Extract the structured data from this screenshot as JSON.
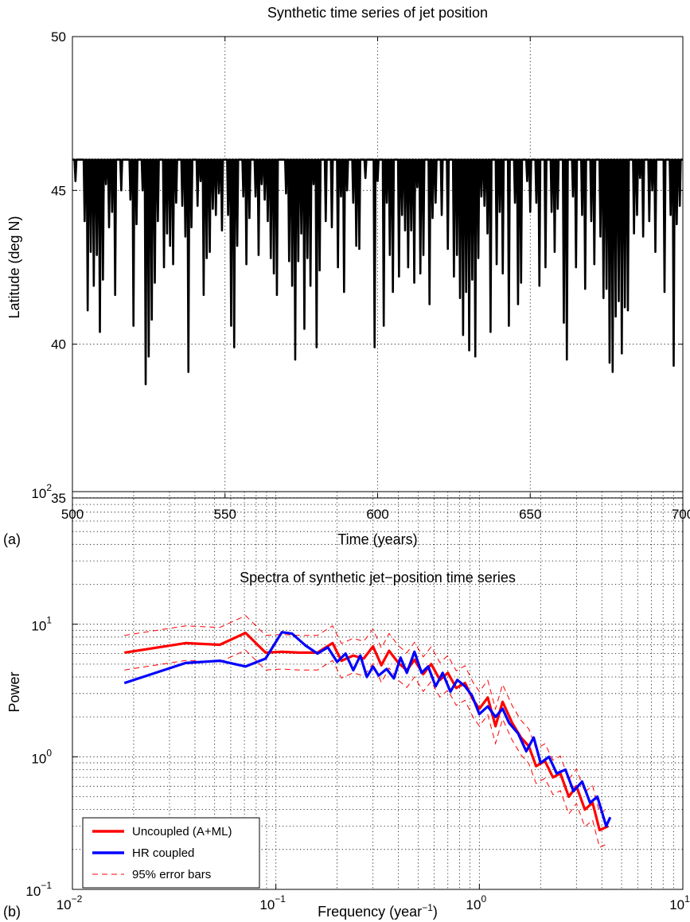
{
  "chart_data": [
    {
      "type": "line",
      "panel_label": "(a)",
      "title": "Synthetic time series of jet position",
      "xlabel": "Time (years)",
      "ylabel": "Latitude (deg N)",
      "xlim": [
        500,
        700
      ],
      "ylim": [
        35,
        50
      ],
      "xticks": [
        "500",
        "550",
        "600",
        "650",
        "700"
      ],
      "yticks": [
        "35",
        "40",
        "45",
        "50"
      ],
      "grid": true,
      "baseline": 46,
      "series": [
        {
          "color": "#000000",
          "description_points": [
            [
              501,
              45.3
            ],
            [
              504,
              44.0
            ],
            [
              505,
              41.1
            ],
            [
              506,
              43.0
            ],
            [
              507,
              41.9
            ],
            [
              508,
              42.9
            ],
            [
              509,
              40.4
            ],
            [
              510,
              42.1
            ],
            [
              511,
              45.2
            ],
            [
              512,
              43.8
            ],
            [
              513,
              44.3
            ],
            [
              514,
              41.6
            ],
            [
              516,
              45.0
            ],
            [
              519,
              44.7
            ],
            [
              520,
              40.6
            ],
            [
              521,
              43.9
            ],
            [
              523,
              45.0
            ],
            [
              524,
              38.7
            ],
            [
              525,
              39.6
            ],
            [
              526,
              40.8
            ],
            [
              527,
              42.0
            ],
            [
              528,
              44.0
            ],
            [
              530,
              42.5
            ],
            [
              531,
              43.6
            ],
            [
              532,
              43.2
            ],
            [
              533,
              42.6
            ],
            [
              534,
              44.6
            ],
            [
              536,
              44.5
            ],
            [
              537,
              43.5
            ],
            [
              538,
              39.1
            ],
            [
              539,
              43.8
            ],
            [
              541,
              44.5
            ],
            [
              542,
              45.3
            ],
            [
              543,
              41.6
            ],
            [
              544,
              42.8
            ],
            [
              545,
              43.0
            ],
            [
              546,
              44.4
            ],
            [
              547,
              44.2
            ],
            [
              548,
              44.9
            ],
            [
              549,
              43.7
            ],
            [
              551,
              44.2
            ],
            [
              552,
              40.6
            ],
            [
              553,
              39.9
            ],
            [
              554,
              43.2
            ],
            [
              556,
              44.8
            ],
            [
              557,
              42.6
            ],
            [
              558,
              44.1
            ],
            [
              560,
              44.8
            ],
            [
              561,
              42.9
            ],
            [
              562,
              45.2
            ],
            [
              563,
              44.7
            ],
            [
              564,
              44.0
            ],
            [
              565,
              42.8
            ],
            [
              566,
              42.3
            ],
            [
              567,
              41.6
            ],
            [
              570,
              44.9
            ],
            [
              571,
              42.7
            ],
            [
              572,
              41.9
            ],
            [
              573,
              39.5
            ],
            [
              574,
              42.7
            ],
            [
              575,
              43.6
            ],
            [
              576,
              40.5
            ],
            [
              577,
              42.8
            ],
            [
              578,
              41.9
            ],
            [
              579,
              45.2
            ],
            [
              580,
              39.9
            ],
            [
              581,
              42.4
            ],
            [
              583,
              44.0
            ],
            [
              585,
              43.8
            ],
            [
              587,
              42.5
            ],
            [
              588,
              44.8
            ],
            [
              589,
              41.7
            ],
            [
              590,
              45.0
            ],
            [
              592,
              44.6
            ],
            [
              593,
              43.2
            ],
            [
              594,
              43.1
            ],
            [
              596,
              45.4
            ],
            [
              599,
              39.9
            ],
            [
              600,
              45.3
            ],
            [
              602,
              40.6
            ],
            [
              603,
              44.6
            ],
            [
              604,
              42.9
            ],
            [
              605,
              41.7
            ],
            [
              607,
              42.2
            ],
            [
              608,
              44.2
            ],
            [
              609,
              43.7
            ],
            [
              610,
              42.5
            ],
            [
              611,
              43.7
            ],
            [
              612,
              42.0
            ],
            [
              613,
              45.1
            ],
            [
              614,
              42.3
            ],
            [
              615,
              42.9
            ],
            [
              617,
              41.3
            ],
            [
              618,
              44.1
            ],
            [
              619,
              44.6
            ],
            [
              621,
              44.2
            ],
            [
              623,
              43.1
            ],
            [
              625,
              42.2
            ],
            [
              626,
              42.9
            ],
            [
              627,
              41.5
            ],
            [
              628,
              40.3
            ],
            [
              629,
              41.7
            ],
            [
              630,
              39.8
            ],
            [
              631,
              42.1
            ],
            [
              632,
              39.6
            ],
            [
              633,
              42.8
            ],
            [
              634,
              44.8
            ],
            [
              635,
              44.5
            ],
            [
              636,
              43.6
            ],
            [
              637,
              40.4
            ],
            [
              639,
              42.6
            ],
            [
              640,
              44.3
            ],
            [
              641,
              42.3
            ],
            [
              643,
              40.6
            ],
            [
              645,
              44.6
            ],
            [
              646,
              41.3
            ],
            [
              647,
              42.0
            ],
            [
              649,
              45.3
            ],
            [
              650,
              44.3
            ],
            [
              652,
              44.6
            ],
            [
              653,
              41.9
            ],
            [
              655,
              42.5
            ],
            [
              657,
              44.3
            ],
            [
              658,
              43.0
            ],
            [
              659,
              44.4
            ],
            [
              661,
              40.7
            ],
            [
              662,
              39.5
            ],
            [
              664,
              44.8
            ],
            [
              665,
              42.5
            ],
            [
              667,
              44.2
            ],
            [
              668,
              41.8
            ],
            [
              670,
              44.0
            ],
            [
              671,
              42.6
            ],
            [
              673,
              43.5
            ],
            [
              674,
              41.5
            ],
            [
              675,
              41.8
            ],
            [
              676,
              39.4
            ],
            [
              677,
              39.1
            ],
            [
              678,
              40.9
            ],
            [
              679,
              41.4
            ],
            [
              680,
              39.7
            ],
            [
              681,
              41.2
            ],
            [
              682,
              41.1
            ],
            [
              684,
              43.6
            ],
            [
              685,
              44.2
            ],
            [
              686,
              45.4
            ],
            [
              687,
              43.5
            ],
            [
              689,
              44.0
            ],
            [
              690,
              45.0
            ],
            [
              691,
              43.0
            ],
            [
              694,
              41.7
            ],
            [
              696,
              44.2
            ],
            [
              697,
              39.3
            ],
            [
              698,
              43.9
            ],
            [
              699,
              44.5
            ]
          ]
        }
      ]
    },
    {
      "type": "line",
      "panel_label": "(b)",
      "title": "Spectra of synthetic jet−position time series",
      "xlabel": "Frequency (year",
      "xlabel_sup": "−1",
      "xlabel_end": ")",
      "ylabel": "Power",
      "xscale": "log",
      "yscale": "log",
      "xlim": [
        0.01,
        10
      ],
      "ylim": [
        0.1,
        100
      ],
      "xticks": [
        {
          "base": "10",
          "exp": "−2"
        },
        {
          "base": "10",
          "exp": "−1"
        },
        {
          "base": "10",
          "exp": "0"
        },
        {
          "base": "10",
          "exp": "1"
        }
      ],
      "yticks": [
        {
          "base": "10",
          "exp": "−1"
        },
        {
          "base": "10",
          "exp": "0"
        },
        {
          "base": "10",
          "exp": "1"
        },
        {
          "base": "10",
          "exp": "2"
        }
      ],
      "grid": true,
      "legend_position": "bottom-left",
      "series": [
        {
          "name": "Uncoupled (A+ML)",
          "color": "#ff0000",
          "style": "solid",
          "x": [
            0.018,
            0.036,
            0.053,
            0.071,
            0.089,
            0.107,
            0.13,
            0.16,
            0.19,
            0.21,
            0.24,
            0.27,
            0.3,
            0.33,
            0.36,
            0.4,
            0.44,
            0.48,
            0.53,
            0.58,
            0.64,
            0.7,
            0.77,
            0.85,
            0.93,
            1.0,
            1.1,
            1.2,
            1.3,
            1.45,
            1.6,
            1.75,
            1.9,
            2.1,
            2.3,
            2.5,
            2.75,
            3.0,
            3.3,
            3.6,
            3.9,
            4.3
          ],
          "y": [
            6.1,
            7.2,
            7.0,
            8.6,
            6.1,
            6.2,
            6.1,
            6.1,
            7.2,
            5.3,
            5.8,
            5.5,
            6.8,
            4.9,
            6.3,
            5.1,
            4.5,
            5.4,
            4.2,
            5.0,
            3.8,
            4.3,
            3.3,
            3.6,
            2.7,
            2.3,
            2.8,
            1.7,
            2.6,
            1.8,
            1.4,
            1.2,
            0.85,
            0.93,
            0.7,
            0.75,
            0.5,
            0.6,
            0.4,
            0.45,
            0.28,
            0.3
          ]
        },
        {
          "name": "HR coupled",
          "color": "#0000ff",
          "style": "solid",
          "x": [
            0.018,
            0.036,
            0.053,
            0.071,
            0.089,
            0.107,
            0.12,
            0.14,
            0.16,
            0.18,
            0.2,
            0.22,
            0.24,
            0.26,
            0.28,
            0.3,
            0.32,
            0.35,
            0.38,
            0.41,
            0.44,
            0.48,
            0.52,
            0.56,
            0.61,
            0.66,
            0.72,
            0.78,
            0.85,
            0.92,
            1.0,
            1.1,
            1.2,
            1.3,
            1.4,
            1.55,
            1.7,
            1.85,
            2.0,
            2.2,
            2.4,
            2.65,
            2.9,
            3.2,
            3.5,
            3.8,
            4.2,
            4.4
          ],
          "y": [
            3.6,
            5.1,
            5.3,
            4.8,
            5.5,
            8.7,
            8.5,
            6.9,
            6.0,
            6.7,
            5.2,
            6.0,
            4.5,
            5.8,
            4.0,
            4.8,
            4.1,
            4.6,
            3.9,
            5.6,
            4.3,
            6.2,
            4.3,
            4.8,
            3.4,
            4.3,
            3.1,
            3.8,
            3.4,
            2.9,
            2.1,
            2.4,
            2.0,
            2.3,
            1.8,
            1.5,
            1.1,
            1.4,
            0.9,
            1.0,
            0.75,
            0.8,
            0.55,
            0.65,
            0.45,
            0.5,
            0.3,
            0.35
          ]
        },
        {
          "name": "95% error bars",
          "color": "#ff0000",
          "style": "dashed",
          "factor": 1.35
        }
      ]
    }
  ]
}
